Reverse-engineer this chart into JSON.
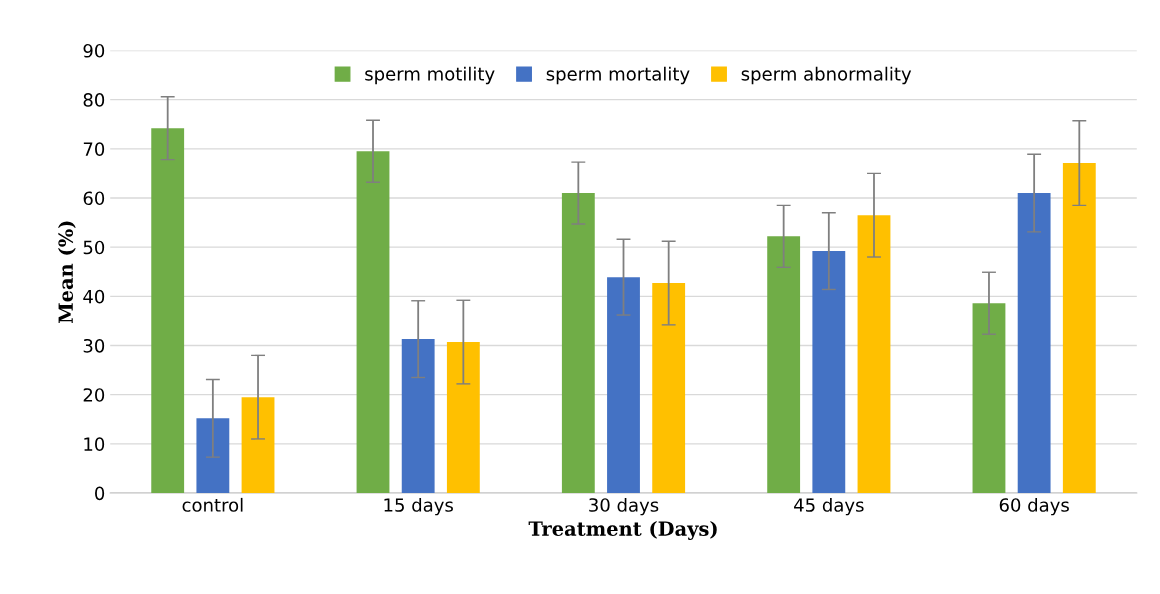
{
  "chart_data": {
    "type": "bar",
    "xlabel": "Treatment (Days)",
    "ylabel": "Mean (%)",
    "categories": [
      "control",
      "15 days",
      "30 days",
      "45 days",
      "60 days"
    ],
    "series": [
      {
        "name": "sperm motility",
        "color": "#70ad47",
        "values": [
          74.2,
          69.5,
          61,
          52.2,
          38.6
        ],
        "errors": [
          6.4,
          6.3,
          6.3,
          6.3,
          6.3
        ]
      },
      {
        "name": "sperm mortality",
        "color": "#4472c4",
        "values": [
          15.2,
          31.3,
          43.9,
          49.2,
          61
        ],
        "errors": [
          7.9,
          7.8,
          7.7,
          7.8,
          7.9
        ]
      },
      {
        "name": "sperm abnormality",
        "color": "#ffc000",
        "values": [
          19.5,
          30.7,
          42.7,
          56.5,
          67.1
        ],
        "errors": [
          8.5,
          8.5,
          8.5,
          8.5,
          8.6
        ]
      }
    ],
    "ylim": [
      0,
      90
    ],
    "yticks": [
      0,
      10,
      20,
      30,
      40,
      50,
      60,
      70,
      80,
      90
    ],
    "grid": "y",
    "legend": "top"
  }
}
